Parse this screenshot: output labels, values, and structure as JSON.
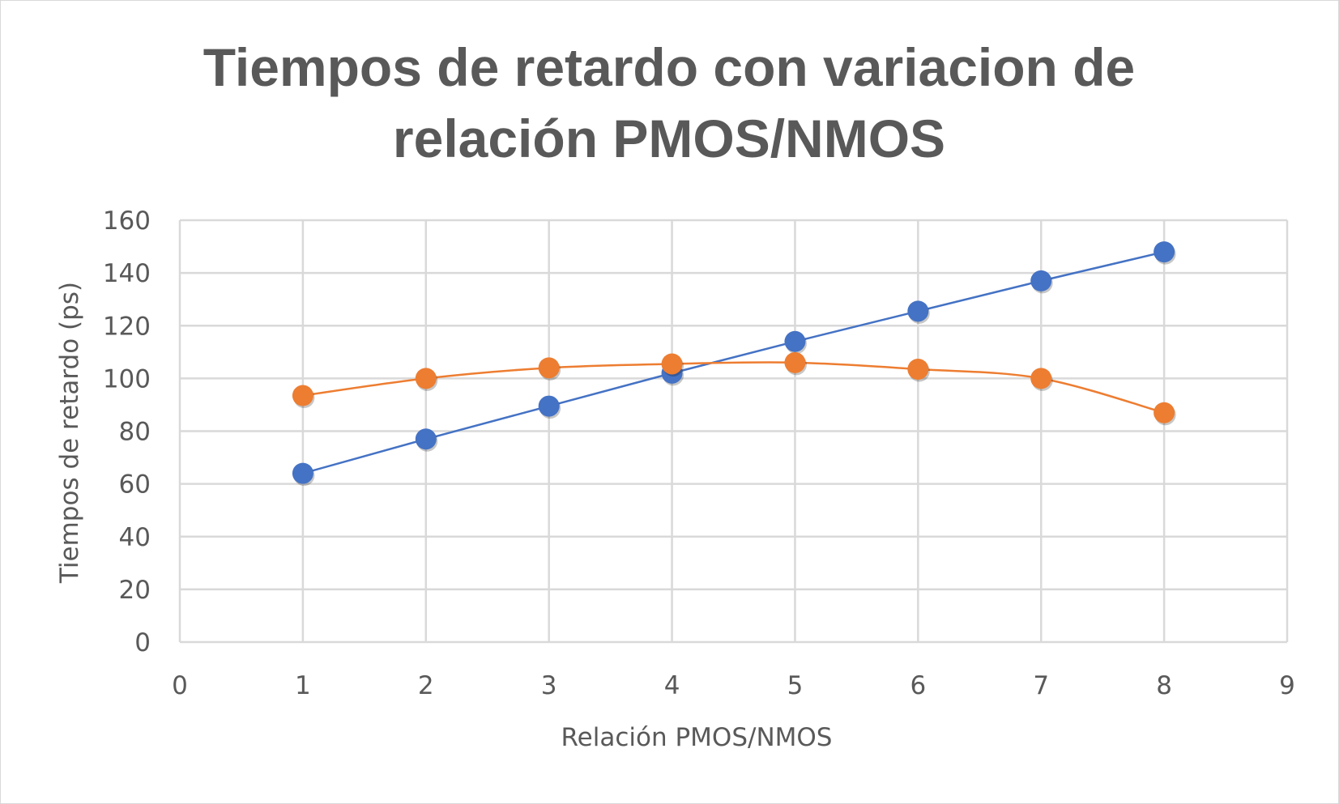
{
  "chart_data": {
    "type": "scatter",
    "title_lines": [
      "Tiempos de retardo con variacion de",
      "relación PMOS/NMOS"
    ],
    "xlabel": "Relación PMOS/NMOS",
    "ylabel": "Tiempos de retardo (ps)",
    "xlim": [
      0,
      9
    ],
    "ylim": [
      0,
      160
    ],
    "xticks": [
      "0",
      "1",
      "2",
      "3",
      "4",
      "5",
      "6",
      "7",
      "8",
      "9"
    ],
    "yticks": [
      "0",
      "20",
      "40",
      "60",
      "80",
      "100",
      "120",
      "140",
      "160"
    ],
    "grid": true,
    "series": [
      {
        "color": "#4472c4",
        "smooth": false,
        "x": [
          1,
          2,
          3,
          4,
          5,
          6,
          7,
          8
        ],
        "y": [
          64,
          77,
          89.5,
          102,
          114,
          125.5,
          137,
          148
        ]
      },
      {
        "color": "#ed7d31",
        "smooth": true,
        "x": [
          1,
          2,
          3,
          4,
          5,
          6,
          7,
          8
        ],
        "y": [
          93.5,
          100,
          104,
          105.5,
          106,
          103.5,
          100,
          87
        ]
      }
    ]
  }
}
